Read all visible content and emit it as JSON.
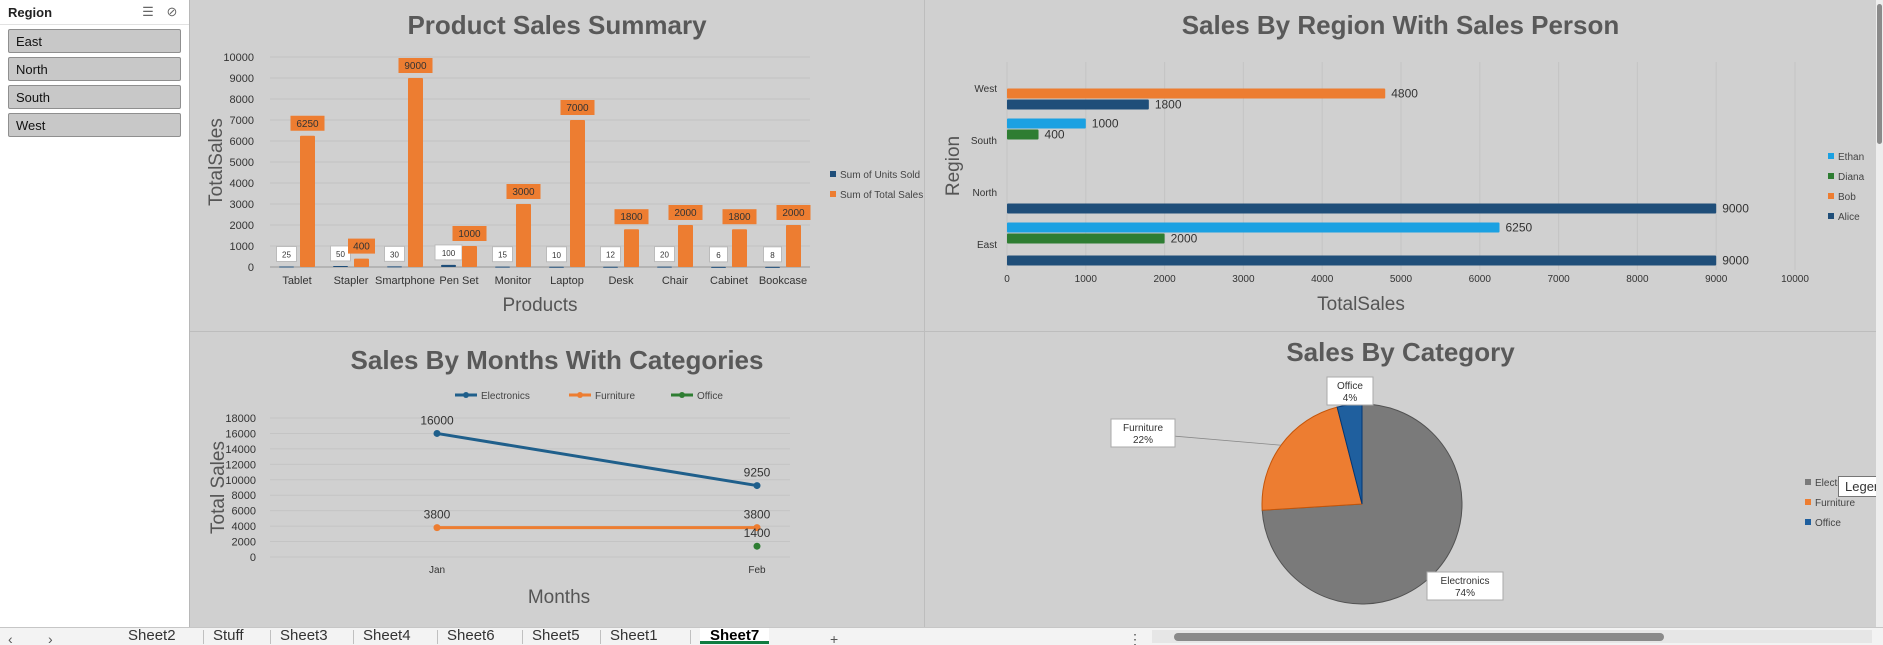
{
  "slicer": {
    "title": "Region",
    "items": [
      "East",
      "North",
      "South",
      "West"
    ]
  },
  "sheet_tabs": [
    "Sheet2",
    "Stuff",
    "Sheet3",
    "Sheet4",
    "Sheet6",
    "Sheet5",
    "Sheet1",
    "Sheet7"
  ],
  "active_tab": "Sheet7",
  "tooltip": "Legend",
  "chart_data": [
    {
      "type": "bar",
      "title": "Product Sales Summary",
      "xlabel": "Products",
      "ylabel": "TotalSales",
      "ylim": [
        0,
        10000
      ],
      "ytick_step": 1000,
      "categories": [
        "Tablet",
        "Stapler",
        "Smartphone",
        "Pen Set",
        "Monitor",
        "Laptop",
        "Desk",
        "Chair",
        "Cabinet",
        "Bookcase"
      ],
      "series": [
        {
          "name": "Sum of Units Sold",
          "color": "#1f4e79",
          "values": [
            25,
            50,
            30,
            100,
            15,
            10,
            12,
            20,
            6,
            8
          ]
        },
        {
          "name": "Sum of Total Sales",
          "color": "#ed7d31",
          "values": [
            6250,
            400,
            9000,
            1000,
            3000,
            7000,
            1800,
            2000,
            1800,
            2000
          ]
        }
      ],
      "legend": "right"
    },
    {
      "type": "bar",
      "orientation": "horizontal",
      "title": "Sales By Region With Sales Person",
      "xlabel": "TotalSales",
      "ylabel": "Region",
      "xlim": [
        0,
        10000
      ],
      "xtick_step": 1000,
      "categories": [
        "East",
        "North",
        "South",
        "West"
      ],
      "series": [
        {
          "name": "Alice",
          "color": "#1f4e79",
          "values": [
            9000,
            9000,
            null,
            1800
          ]
        },
        {
          "name": "Bob",
          "color": "#ed7d31",
          "values": [
            null,
            null,
            null,
            4800
          ]
        },
        {
          "name": "Diana",
          "color": "#2e7d32",
          "values": [
            2000,
            null,
            400,
            null
          ]
        },
        {
          "name": "Ethan",
          "color": "#1ba1e2",
          "values": [
            6250,
            null,
            1000,
            null
          ]
        }
      ],
      "legend": "right"
    },
    {
      "type": "line",
      "title": "Sales By Months With Categories",
      "xlabel": "Months",
      "ylabel": "Total Sales",
      "ylim": [
        0,
        18000
      ],
      "ytick_step": 2000,
      "categories": [
        "Jan",
        "Feb"
      ],
      "series": [
        {
          "name": "Electronics",
          "color": "#1f5f8b",
          "values": [
            16000,
            9250
          ]
        },
        {
          "name": "Furniture",
          "color": "#ed7d31",
          "values": [
            3800,
            3800
          ]
        },
        {
          "name": "Office",
          "color": "#2e7d32",
          "values": [
            null,
            1400
          ]
        }
      ],
      "legend": "top"
    },
    {
      "type": "pie",
      "title": "Sales By Category",
      "slices": [
        {
          "label": "Electronics",
          "percent": 74,
          "color": "#7a7a7a"
        },
        {
          "label": "Furniture",
          "percent": 22,
          "color": "#ed7d31"
        },
        {
          "label": "Office",
          "percent": 4,
          "color": "#1f5f9e"
        }
      ],
      "legend_entries": [
        "Electronics",
        "Furniture",
        "Office"
      ],
      "legend": "right"
    }
  ]
}
